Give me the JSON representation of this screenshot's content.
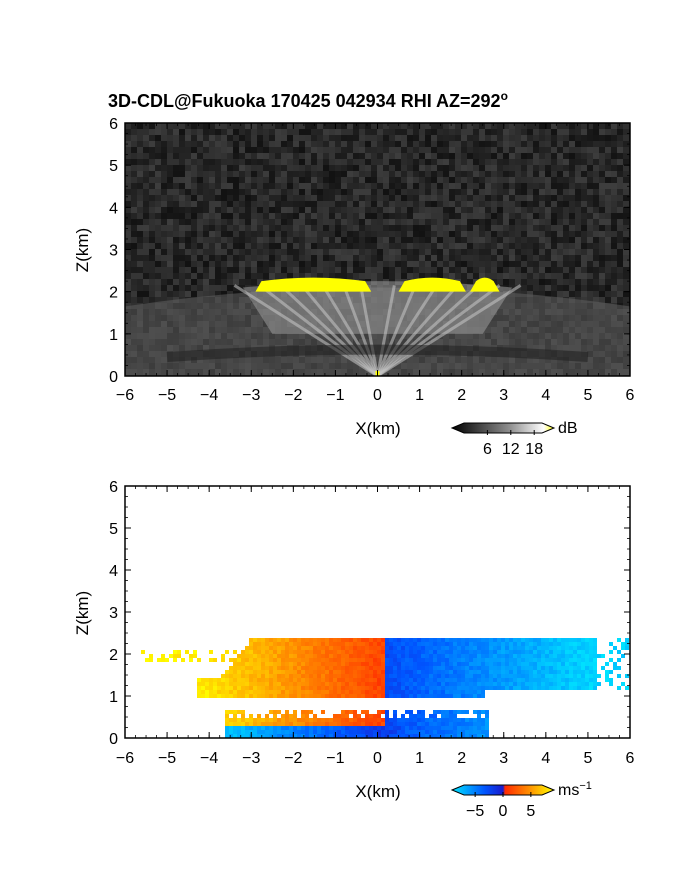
{
  "title": "3D-CDL@Fukuoka 170425 042934 RHI AZ=292",
  "title_superscript": "o",
  "colors": {
    "reflectivity_highlight": "#ffff00",
    "velocity_cbar": [
      "#00e5ff",
      "#0055ff",
      "#1a1acc",
      "#ff2a00",
      "#ff8c00",
      "#ffff00"
    ]
  },
  "chart_data": [
    {
      "type": "heatmap",
      "name": "reflectivity",
      "xlabel": "X(km)",
      "ylabel": "Z(km)",
      "xlim": [
        -6,
        6
      ],
      "ylim": [
        0,
        6
      ],
      "xticks": [
        -6,
        -5,
        -4,
        -3,
        -2,
        -1,
        0,
        1,
        2,
        3,
        4,
        5,
        6
      ],
      "yticks": [
        0,
        1,
        2,
        3,
        4,
        5,
        6
      ],
      "colorbar": {
        "unit": "dB",
        "ticks": [
          "6",
          "12",
          "18"
        ],
        "range": [
          0,
          20
        ]
      },
      "bright_segments_km": [
        [
          -2.9,
          -0.15
        ],
        [
          0.5,
          2.1
        ],
        [
          2.2,
          2.9
        ]
      ]
    },
    {
      "type": "heatmap",
      "name": "doppler_velocity",
      "xlabel": "X(km)",
      "ylabel": "Z(km)",
      "xlim": [
        -6,
        6
      ],
      "ylim": [
        0,
        6
      ],
      "xticks": [
        -6,
        -5,
        -4,
        -3,
        -2,
        -1,
        0,
        1,
        2,
        3,
        4,
        5,
        6
      ],
      "yticks": [
        0,
        1,
        2,
        3,
        4,
        5,
        6
      ],
      "colorbar": {
        "unit": "ms",
        "unit_superscript": "−1",
        "ticks": [
          "−5",
          "0",
          "5"
        ],
        "range": [
          -7,
          7
        ]
      }
    }
  ]
}
